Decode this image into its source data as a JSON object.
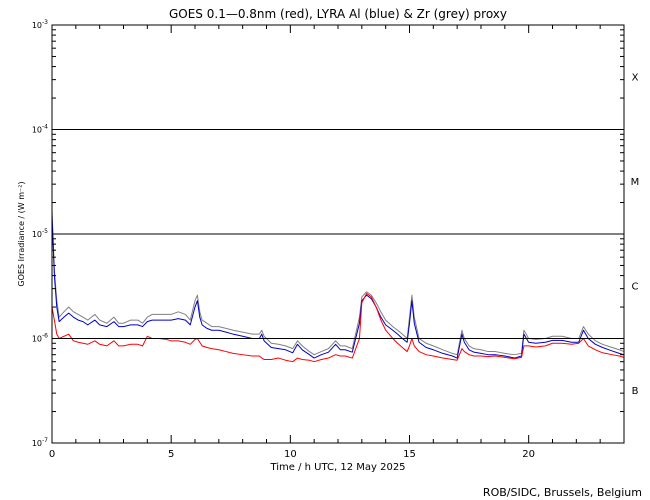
{
  "chart_data": {
    "type": "line",
    "title": "GOES 0.1—0.8nm (red), LYRA Al (blue) & Zr (grey) proxy",
    "xlabel": "Time / h UTC, 12 May 2025",
    "ylabel": "GOES Irradiance / (W m⁻²)",
    "y_scale": "log",
    "xlim": [
      0,
      24
    ],
    "ylim": [
      1e-07,
      0.001
    ],
    "x_ticks": [
      0,
      5,
      10,
      15,
      20
    ],
    "x_tick_labels": [
      "0",
      "5",
      "10",
      "15",
      "20"
    ],
    "y_ticks": [
      {
        "value": 1e-07,
        "base": "10",
        "exp": "-7"
      },
      {
        "value": 1e-06,
        "base": "10",
        "exp": "-6"
      },
      {
        "value": 1e-05,
        "base": "10",
        "exp": "-5"
      },
      {
        "value": 0.0001,
        "base": "10",
        "exp": "-4"
      },
      {
        "value": 0.001,
        "base": "10",
        "exp": "-3"
      }
    ],
    "threshold_lines": [
      1e-06,
      1e-05,
      0.0001
    ],
    "flare_classes": [
      {
        "label": "B",
        "y": 3.2e-07
      },
      {
        "label": "C",
        "y": 3.2e-06
      },
      {
        "label": "M",
        "y": 3.2e-05
      },
      {
        "label": "X",
        "y": 0.00032
      }
    ],
    "grid": false,
    "series": [
      {
        "color": "#808080",
        "x": [
          0.0,
          0.1,
          0.2,
          0.3,
          0.5,
          0.7,
          0.9,
          1.1,
          1.3,
          1.5,
          1.8,
          2.0,
          2.3,
          2.6,
          2.8,
          3.0,
          3.3,
          3.6,
          3.8,
          4.0,
          4.2,
          4.5,
          4.8,
          5.0,
          5.3,
          5.6,
          5.8,
          6.0,
          6.1,
          6.2,
          6.3,
          6.5,
          6.7,
          7.0,
          7.3,
          7.6,
          8.0,
          8.4,
          8.7,
          8.8,
          8.9,
          9.2,
          9.5,
          9.8,
          10.1,
          10.3,
          10.5,
          10.8,
          11.0,
          11.3,
          11.6,
          11.9,
          12.1,
          12.3,
          12.6,
          12.9,
          13.0,
          13.2,
          13.4,
          13.6,
          13.8,
          14.0,
          14.3,
          14.5,
          14.7,
          14.9,
          15.0,
          15.1,
          15.2,
          15.4,
          15.7,
          16.0,
          16.4,
          16.8,
          17.0,
          17.2,
          17.3,
          17.5,
          17.7,
          18.0,
          18.3,
          18.6,
          19.0,
          19.4,
          19.7,
          19.8,
          20.0,
          20.3,
          20.7,
          21.0,
          21.4,
          21.8,
          22.1,
          22.3,
          22.5,
          22.8,
          23.1,
          23.5,
          23.8,
          24.0
        ],
        "y": [
          1.7e-05,
          4.5e-06,
          2.3e-06,
          1.6e-06,
          1.8e-06,
          2e-06,
          1.8e-06,
          1.7e-06,
          1.6e-06,
          1.5e-06,
          1.7e-06,
          1.5e-06,
          1.4e-06,
          1.6e-06,
          1.4e-06,
          1.4e-06,
          1.5e-06,
          1.5e-06,
          1.4e-06,
          1.6e-06,
          1.7e-06,
          1.7e-06,
          1.7e-06,
          1.7e-06,
          1.8e-06,
          1.7e-06,
          1.5e-06,
          2.3e-06,
          2.6e-06,
          1.8e-06,
          1.5e-06,
          1.4e-06,
          1.3e-06,
          1.3e-06,
          1.25e-06,
          1.2e-06,
          1.15e-06,
          1.1e-06,
          1.1e-06,
          1.2e-06,
          1.05e-06,
          9e-07,
          8.8e-07,
          8.5e-07,
          8e-07,
          9.5e-07,
          8.5e-07,
          7.5e-07,
          7e-07,
          7.5e-07,
          8e-07,
          9.5e-07,
          8.5e-07,
          8.5e-07,
          8e-07,
          1.6e-06,
          2.5e-06,
          2.8e-06,
          2.6e-06,
          2.2e-06,
          1.8e-06,
          1.5e-06,
          1.3e-06,
          1.2e-06,
          1.1e-06,
          1e-06,
          1.6e-06,
          2.6e-06,
          1.6e-06,
          1e-06,
          9e-07,
          8.5e-07,
          7.8e-07,
          7.2e-07,
          7e-07,
          1.2e-06,
          1e-06,
          8.5e-07,
          8e-07,
          7.8e-07,
          7.5e-07,
          7.5e-07,
          7.2e-07,
          7e-07,
          7.2e-07,
          1.2e-06,
          1e-06,
          9.8e-07,
          1e-06,
          1.05e-06,
          1.05e-06,
          1e-06,
          1e-06,
          1.3e-06,
          1.1e-06,
          9.5e-07,
          8.8e-07,
          8.2e-07,
          7.8e-07,
          7.5e-07
        ]
      },
      {
        "color": "#0000cc",
        "x": [
          0.0,
          0.1,
          0.2,
          0.3,
          0.5,
          0.7,
          0.9,
          1.1,
          1.3,
          1.5,
          1.8,
          2.0,
          2.3,
          2.6,
          2.8,
          3.0,
          3.3,
          3.6,
          3.8,
          4.0,
          4.2,
          4.5,
          4.8,
          5.0,
          5.3,
          5.6,
          5.8,
          6.0,
          6.1,
          6.2,
          6.3,
          6.5,
          6.7,
          7.0,
          7.3,
          7.6,
          8.0,
          8.4,
          8.7,
          8.8,
          8.9,
          9.2,
          9.5,
          9.8,
          10.1,
          10.3,
          10.5,
          10.8,
          11.0,
          11.3,
          11.6,
          11.9,
          12.1,
          12.3,
          12.6,
          12.9,
          13.0,
          13.2,
          13.4,
          13.6,
          13.8,
          14.0,
          14.3,
          14.5,
          14.7,
          14.9,
          15.0,
          15.1,
          15.2,
          15.4,
          15.7,
          16.0,
          16.4,
          16.8,
          17.0,
          17.2,
          17.3,
          17.5,
          17.7,
          18.0,
          18.3,
          18.6,
          19.0,
          19.4,
          19.7,
          19.8,
          20.0,
          20.3,
          20.7,
          21.0,
          21.4,
          21.8,
          22.1,
          22.3,
          22.5,
          22.8,
          23.1,
          23.5,
          23.8,
          24.0
        ],
        "y": [
          1.5e-05,
          4e-06,
          2e-06,
          1.45e-06,
          1.6e-06,
          1.75e-06,
          1.6e-06,
          1.5e-06,
          1.45e-06,
          1.35e-06,
          1.5e-06,
          1.35e-06,
          1.3e-06,
          1.45e-06,
          1.3e-06,
          1.3e-06,
          1.35e-06,
          1.35e-06,
          1.3e-06,
          1.45e-06,
          1.5e-06,
          1.5e-06,
          1.5e-06,
          1.5e-06,
          1.55e-06,
          1.5e-06,
          1.35e-06,
          2e-06,
          2.3e-06,
          1.6e-06,
          1.35e-06,
          1.25e-06,
          1.2e-06,
          1.2e-06,
          1.15e-06,
          1.1e-06,
          1.05e-06,
          1e-06,
          1e-06,
          1.1e-06,
          9.5e-07,
          8.2e-07,
          8e-07,
          7.8e-07,
          7.3e-07,
          8.8e-07,
          7.8e-07,
          7e-07,
          6.5e-07,
          7e-07,
          7.4e-07,
          8.8e-07,
          7.8e-07,
          7.8e-07,
          7.4e-07,
          1.4e-06,
          2.3e-06,
          2.6e-06,
          2.4e-06,
          2e-06,
          1.6e-06,
          1.35e-06,
          1.2e-06,
          1.1e-06,
          1e-06,
          9.2e-07,
          1.4e-06,
          2.3e-06,
          1.4e-06,
          9.2e-07,
          8.2e-07,
          7.8e-07,
          7.2e-07,
          6.8e-07,
          6.5e-07,
          1.1e-06,
          9.2e-07,
          7.8e-07,
          7.4e-07,
          7.2e-07,
          7e-07,
          7e-07,
          6.8e-07,
          6.5e-07,
          6.8e-07,
          1.1e-06,
          9.2e-07,
          9e-07,
          9.2e-07,
          9.6e-07,
          9.6e-07,
          9.2e-07,
          9.2e-07,
          1.2e-06,
          1e-06,
          8.8e-07,
          8.2e-07,
          7.6e-07,
          7.2e-07,
          7e-07
        ]
      },
      {
        "color": "#ff0000",
        "x": [
          0.0,
          0.1,
          0.2,
          0.3,
          0.5,
          0.7,
          0.9,
          1.1,
          1.3,
          1.5,
          1.8,
          2.0,
          2.3,
          2.6,
          2.8,
          3.0,
          3.3,
          3.6,
          3.8,
          4.0,
          4.2,
          4.5,
          4.8,
          5.0,
          5.3,
          5.6,
          5.8,
          6.0,
          6.1,
          6.2,
          6.3,
          6.5,
          6.7,
          7.0,
          7.3,
          7.6,
          8.0,
          8.4,
          8.7,
          8.8,
          8.9,
          9.2,
          9.5,
          9.8,
          10.1,
          10.3,
          10.5,
          10.8,
          11.0,
          11.3,
          11.6,
          11.9,
          12.1,
          12.3,
          12.6,
          12.9,
          13.0,
          13.2,
          13.4,
          13.6,
          13.8,
          14.0,
          14.3,
          14.5,
          14.7,
          14.9,
          15.0,
          15.1,
          15.2,
          15.4,
          15.7,
          16.0,
          16.4,
          16.8,
          17.0,
          17.2,
          17.3,
          17.5,
          17.7,
          18.0,
          18.3,
          18.6,
          19.0,
          19.4,
          19.7,
          19.8,
          20.0,
          20.3,
          20.7,
          21.0,
          21.4,
          21.8,
          22.1,
          22.3,
          22.5,
          22.8,
          23.1,
          23.5,
          23.8,
          24.0
        ],
        "y": [
          2e-06,
          1.5e-06,
          1.1e-06,
          1e-06,
          1.05e-06,
          1.1e-06,
          9.5e-07,
          9.2e-07,
          9e-07,
          8.8e-07,
          9.5e-07,
          8.8e-07,
          8.5e-07,
          9.5e-07,
          8.5e-07,
          8.5e-07,
          8.8e-07,
          8.8e-07,
          8.5e-07,
          1.05e-06,
          1e-06,
          1e-06,
          9.8e-07,
          9.5e-07,
          9.5e-07,
          9.2e-07,
          8.8e-07,
          9.8e-07,
          1e-06,
          9.2e-07,
          8.5e-07,
          8.2e-07,
          8e-07,
          7.8e-07,
          7.5e-07,
          7.2e-07,
          7e-07,
          6.8e-07,
          6.8e-07,
          6.5e-07,
          6.3e-07,
          6.3e-07,
          6.5e-07,
          6.2e-07,
          6e-07,
          6.5e-07,
          6.3e-07,
          6.2e-07,
          6e-07,
          6.3e-07,
          6.5e-07,
          7e-07,
          6.8e-07,
          6.8e-07,
          6.5e-07,
          1e-06,
          2.2e-06,
          2.7e-06,
          2.5e-06,
          2e-06,
          1.5e-06,
          1.2e-06,
          1e-06,
          9e-07,
          8.2e-07,
          7.5e-07,
          8.5e-07,
          1e-06,
          8.5e-07,
          7.5e-07,
          7e-07,
          6.8e-07,
          6.5e-07,
          6.3e-07,
          6.2e-07,
          8e-07,
          7.5e-07,
          7e-07,
          6.8e-07,
          6.8e-07,
          6.7e-07,
          6.8e-07,
          6.6e-07,
          6.4e-07,
          6.6e-07,
          8.5e-07,
          8.5e-07,
          8.3e-07,
          8.5e-07,
          9e-07,
          9e-07,
          8.8e-07,
          9e-07,
          1e-06,
          8.5e-07,
          7.8e-07,
          7.3e-07,
          7e-07,
          6.8e-07,
          6.6e-07
        ]
      }
    ]
  },
  "footer": {
    "credit": "ROB/SIDC, Brussels, Belgium"
  }
}
